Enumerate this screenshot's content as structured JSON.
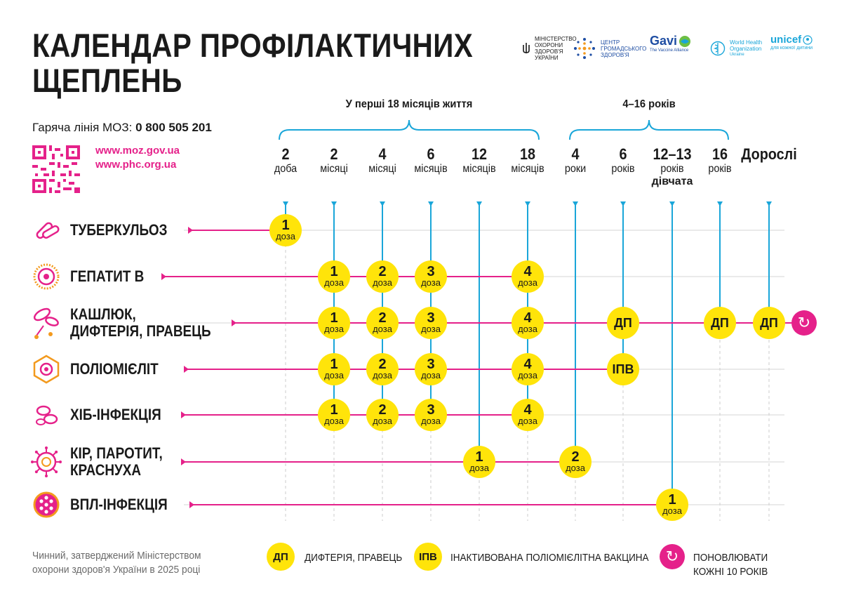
{
  "title": "КАЛЕНДАР ПРОФІЛАКТИЧНИХ ЩЕПЛЕНЬ",
  "hotline": {
    "label": "Гаряча лінія МОЗ:",
    "number": "0 800 505 201"
  },
  "links": [
    "www.moz.gov.ua",
    "www.phc.org.ua"
  ],
  "logos": {
    "moz": "МІНІСТЕРСТВО ОХОРОНИ ЗДОРОВ'Я УКРАЇНИ",
    "phc": "ЦЕНТР ГРОМАДСЬКОГО ЗДОРОВ'Я",
    "gavi": "Gavi",
    "gavi_sub": "The Vaccine Alliance",
    "who": "World Health Organization",
    "who_sub": "Ukraine",
    "unicef": "unicef",
    "unicef_sub": "для кожної дитини"
  },
  "groups": [
    {
      "label": "У перші 18 місяців життя"
    },
    {
      "label": "4–16 років"
    }
  ],
  "ages": [
    {
      "num": "2",
      "unit": "доба"
    },
    {
      "num": "2",
      "unit": "місяці"
    },
    {
      "num": "4",
      "unit": "місяці"
    },
    {
      "num": "6",
      "unit": "місяців"
    },
    {
      "num": "12",
      "unit": "місяців"
    },
    {
      "num": "18",
      "unit": "місяців"
    },
    {
      "num": "4",
      "unit": "роки"
    },
    {
      "num": "6",
      "unit": "років"
    },
    {
      "num": "12–13",
      "unit": "років",
      "extra": "дівчата"
    },
    {
      "num": "16",
      "unit": "років"
    },
    {
      "num": "Дорослі",
      "unit": ""
    }
  ],
  "diseases": [
    {
      "name": [
        "ТУБЕРКУЛЬОЗ"
      ],
      "icon": "tuberculosis-icon",
      "doses": [
        {
          "col": 0,
          "n": "1",
          "d": "доза"
        }
      ]
    },
    {
      "name": [
        "ГЕПАТИТ В"
      ],
      "icon": "hepatitis-b-icon",
      "doses": [
        {
          "col": 1,
          "n": "1",
          "d": "доза"
        },
        {
          "col": 2,
          "n": "2",
          "d": "доза"
        },
        {
          "col": 3,
          "n": "3",
          "d": "доза"
        },
        {
          "col": 5,
          "n": "4",
          "d": "доза"
        }
      ]
    },
    {
      "name": [
        "КАШЛЮК,",
        "ДИФТЕРІЯ, ПРАВЕЦЬ"
      ],
      "icon": "pertussis-icon",
      "doses": [
        {
          "col": 1,
          "n": "1",
          "d": "доза"
        },
        {
          "col": 2,
          "n": "2",
          "d": "доза"
        },
        {
          "col": 3,
          "n": "3",
          "d": "доза"
        },
        {
          "col": 5,
          "n": "4",
          "d": "доза"
        },
        {
          "col": 7,
          "abbr": "ДП"
        },
        {
          "col": 9,
          "abbr": "ДП"
        },
        {
          "col": 10,
          "abbr": "ДП"
        }
      ],
      "renew": true
    },
    {
      "name": [
        "ПОЛІОМІЄЛІТ"
      ],
      "icon": "polio-icon",
      "doses": [
        {
          "col": 1,
          "n": "1",
          "d": "доза"
        },
        {
          "col": 2,
          "n": "2",
          "d": "доза"
        },
        {
          "col": 3,
          "n": "3",
          "d": "доза"
        },
        {
          "col": 5,
          "n": "4",
          "d": "доза"
        },
        {
          "col": 7,
          "abbr": "ІПВ"
        }
      ]
    },
    {
      "name": [
        "ХІБ-ІНФЕКЦІЯ"
      ],
      "icon": "hib-icon",
      "doses": [
        {
          "col": 1,
          "n": "1",
          "d": "доза"
        },
        {
          "col": 2,
          "n": "2",
          "d": "доза"
        },
        {
          "col": 3,
          "n": "3",
          "d": "доза"
        },
        {
          "col": 5,
          "n": "4",
          "d": "доза"
        }
      ]
    },
    {
      "name": [
        "КІР, ПАРОТИТ,",
        "КРАСНУХА"
      ],
      "icon": "measles-icon",
      "doses": [
        {
          "col": 4,
          "n": "1",
          "d": "доза"
        },
        {
          "col": 6,
          "n": "2",
          "d": "доза"
        }
      ]
    },
    {
      "name": [
        "ВПЛ-ІНФЕКЦІЯ"
      ],
      "icon": "hpv-icon",
      "doses": [
        {
          "col": 8,
          "n": "1",
          "d": "доза"
        }
      ]
    }
  ],
  "footer_note": [
    "Чинний, затверджений Міністерством",
    "охорони здоров'я України в 2025 році"
  ],
  "legend": [
    {
      "badge": "ДП",
      "text": "ДИФТЕРІЯ, ПРАВЕЦЬ"
    },
    {
      "badge": "ІПВ",
      "text": "ІНАКТИВОВАНА ПОЛІОМІЄЛІТНА ВАКЦИНА"
    },
    {
      "badge": "renew",
      "text": "ПОНОВЛЮВАТИ КОЖНІ 10 РОКІВ"
    }
  ],
  "colors": {
    "pink": "#e5218a",
    "yellow": "#ffe40a",
    "blue": "#1aa6d9",
    "grid": "#d4d4d4",
    "orange": "#f39a1e"
  }
}
